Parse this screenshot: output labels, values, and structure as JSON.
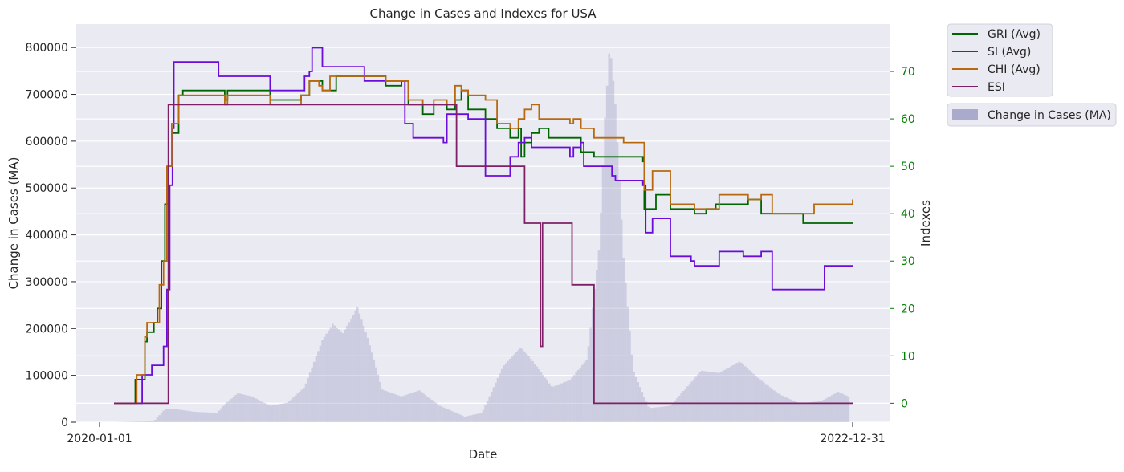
{
  "chart_data": {
    "type": "line",
    "title": "Change in Cases and Indexes for USA",
    "xlabel": "Date",
    "ylabel": "Change in Cases (MA)",
    "y2label": "Indexes",
    "x_ticks": [
      "2020-01-01",
      "2022-12-31"
    ],
    "x_range": [
      "2020-01-01",
      "2022-12-31"
    ],
    "ylim": [
      0,
      850000
    ],
    "y_ticks": [
      0,
      100000,
      200000,
      300000,
      400000,
      500000,
      600000,
      700000,
      800000
    ],
    "y2lim": [
      -4,
      80
    ],
    "y2_ticks": [
      0,
      10,
      20,
      30,
      40,
      50,
      60,
      70
    ],
    "grid": true,
    "legend_position": "outside-right",
    "colors": {
      "GRI": "#006400",
      "SI": "#6a0ddb",
      "CHI": "#b8690f",
      "ESI": "#7f2067",
      "cases": "#aaaacc",
      "plot_bg": "#eaeaf2",
      "right_tick": "#008000"
    },
    "cases": {
      "name": "Change in Cases (MA)",
      "points": [
        [
          "2020-01-22",
          0
        ],
        [
          "2020-03-20",
          2000
        ],
        [
          "2020-04-05",
          28000
        ],
        [
          "2020-04-20",
          28000
        ],
        [
          "2020-05-20",
          22000
        ],
        [
          "2020-06-20",
          20000
        ],
        [
          "2020-07-01",
          38000
        ],
        [
          "2020-07-20",
          62000
        ],
        [
          "2020-08-10",
          55000
        ],
        [
          "2020-09-05",
          35000
        ],
        [
          "2020-10-01",
          42000
        ],
        [
          "2020-10-25",
          75000
        ],
        [
          "2020-11-20",
          175000
        ],
        [
          "2020-12-05",
          210000
        ],
        [
          "2020-12-20",
          190000
        ],
        [
          "2021-01-10",
          245000
        ],
        [
          "2021-01-25",
          180000
        ],
        [
          "2021-02-15",
          70000
        ],
        [
          "2021-03-15",
          55000
        ],
        [
          "2021-04-10",
          68000
        ],
        [
          "2021-05-10",
          35000
        ],
        [
          "2021-06-15",
          12000
        ],
        [
          "2021-07-10",
          20000
        ],
        [
          "2021-08-10",
          120000
        ],
        [
          "2021-09-05",
          160000
        ],
        [
          "2021-09-25",
          125000
        ],
        [
          "2021-10-20",
          75000
        ],
        [
          "2021-11-15",
          90000
        ],
        [
          "2021-12-10",
          135000
        ],
        [
          "2021-12-28",
          380000
        ],
        [
          "2022-01-05",
          650000
        ],
        [
          "2022-01-12",
          810000
        ],
        [
          "2022-01-20",
          680000
        ],
        [
          "2022-02-01",
          350000
        ],
        [
          "2022-02-15",
          110000
        ],
        [
          "2022-03-10",
          30000
        ],
        [
          "2022-04-10",
          35000
        ],
        [
          "2022-05-10",
          85000
        ],
        [
          "2022-05-25",
          110000
        ],
        [
          "2022-06-20",
          105000
        ],
        [
          "2022-07-20",
          130000
        ],
        [
          "2022-08-15",
          95000
        ],
        [
          "2022-09-15",
          60000
        ],
        [
          "2022-10-15",
          40000
        ],
        [
          "2022-11-15",
          45000
        ],
        [
          "2022-12-10",
          65000
        ],
        [
          "2022-12-25",
          55000
        ]
      ]
    },
    "series": [
      {
        "name": "GRI (Avg)",
        "points": [
          [
            "2020-01-22",
            0
          ],
          [
            "2020-02-20",
            0
          ],
          [
            "2020-02-22",
            5
          ],
          [
            "2020-03-05",
            5
          ],
          [
            "2020-03-07",
            13
          ],
          [
            "2020-03-10",
            15
          ],
          [
            "2020-03-20",
            17
          ],
          [
            "2020-03-25",
            20
          ],
          [
            "2020-03-31",
            30
          ],
          [
            "2020-04-05",
            42
          ],
          [
            "2020-04-10",
            50
          ],
          [
            "2020-04-15",
            57
          ],
          [
            "2020-04-25",
            65
          ],
          [
            "2020-05-01",
            66
          ],
          [
            "2020-06-25",
            66
          ],
          [
            "2020-07-01",
            64
          ],
          [
            "2020-07-05",
            66
          ],
          [
            "2020-09-01",
            66
          ],
          [
            "2020-09-05",
            64
          ],
          [
            "2020-10-15",
            64
          ],
          [
            "2020-10-20",
            65
          ],
          [
            "2020-11-01",
            68
          ],
          [
            "2020-11-15",
            68
          ],
          [
            "2020-11-20",
            66
          ],
          [
            "2020-12-10",
            69
          ],
          [
            "2021-02-01",
            69
          ],
          [
            "2021-02-20",
            67
          ],
          [
            "2021-03-15",
            68
          ],
          [
            "2021-03-25",
            63
          ],
          [
            "2021-04-15",
            61
          ],
          [
            "2021-05-01",
            63
          ],
          [
            "2021-05-20",
            62
          ],
          [
            "2021-06-01",
            64
          ],
          [
            "2021-06-10",
            66
          ],
          [
            "2021-06-20",
            62
          ],
          [
            "2021-07-15",
            60
          ],
          [
            "2021-08-01",
            58
          ],
          [
            "2021-08-20",
            56
          ],
          [
            "2021-09-01",
            58
          ],
          [
            "2021-09-05",
            52
          ],
          [
            "2021-09-10",
            55
          ],
          [
            "2021-09-20",
            57
          ],
          [
            "2021-10-01",
            58
          ],
          [
            "2021-10-15",
            56
          ],
          [
            "2021-11-15",
            56
          ],
          [
            "2021-12-01",
            53
          ],
          [
            "2021-12-10",
            53
          ],
          [
            "2021-12-20",
            52
          ],
          [
            "2022-02-01",
            52
          ],
          [
            "2022-03-01",
            51
          ],
          [
            "2022-03-03",
            41
          ],
          [
            "2022-03-15",
            41
          ],
          [
            "2022-03-20",
            44
          ],
          [
            "2022-04-01",
            44
          ],
          [
            "2022-04-10",
            41
          ],
          [
            "2022-05-15",
            40
          ],
          [
            "2022-06-01",
            41
          ],
          [
            "2022-06-15",
            42
          ],
          [
            "2022-07-15",
            42
          ],
          [
            "2022-08-01",
            43
          ],
          [
            "2022-08-20",
            40
          ],
          [
            "2022-10-20",
            38
          ],
          [
            "2022-11-01",
            38
          ],
          [
            "2022-12-31",
            38
          ]
        ]
      },
      {
        "name": "SI (Avg)",
        "points": [
          [
            "2020-01-22",
            0
          ],
          [
            "2020-03-01",
            0
          ],
          [
            "2020-03-03",
            6
          ],
          [
            "2020-03-15",
            6
          ],
          [
            "2020-03-17",
            8
          ],
          [
            "2020-04-01",
            8
          ],
          [
            "2020-04-03",
            12
          ],
          [
            "2020-04-08",
            24
          ],
          [
            "2020-04-12",
            46
          ],
          [
            "2020-04-16",
            58
          ],
          [
            "2020-04-18",
            72
          ],
          [
            "2020-06-20",
            72
          ],
          [
            "2020-06-22",
            69
          ],
          [
            "2020-09-01",
            69
          ],
          [
            "2020-09-05",
            66
          ],
          [
            "2020-10-20",
            66
          ],
          [
            "2020-10-25",
            69
          ],
          [
            "2020-11-01",
            70
          ],
          [
            "2020-11-05",
            75
          ],
          [
            "2020-11-15",
            75
          ],
          [
            "2020-11-20",
            71
          ],
          [
            "2021-01-15",
            71
          ],
          [
            "2021-01-20",
            68
          ],
          [
            "2021-03-01",
            68
          ],
          [
            "2021-03-20",
            59
          ],
          [
            "2021-04-01",
            56
          ],
          [
            "2021-05-15",
            55
          ],
          [
            "2021-05-20",
            61
          ],
          [
            "2021-06-15",
            61
          ],
          [
            "2021-06-20",
            60
          ],
          [
            "2021-07-10",
            60
          ],
          [
            "2021-07-15",
            48
          ],
          [
            "2021-08-15",
            48
          ],
          [
            "2021-08-20",
            52
          ],
          [
            "2021-09-01",
            55
          ],
          [
            "2021-09-10",
            56
          ],
          [
            "2021-09-20",
            54
          ],
          [
            "2021-10-15",
            54
          ],
          [
            "2021-11-15",
            52
          ],
          [
            "2021-11-20",
            54
          ],
          [
            "2021-12-01",
            55
          ],
          [
            "2021-12-05",
            50
          ],
          [
            "2022-01-15",
            48
          ],
          [
            "2022-01-20",
            47
          ],
          [
            "2022-03-01",
            46
          ],
          [
            "2022-03-05",
            36
          ],
          [
            "2022-03-15",
            39
          ],
          [
            "2022-04-01",
            39
          ],
          [
            "2022-04-10",
            31
          ],
          [
            "2022-05-10",
            30
          ],
          [
            "2022-05-15",
            29
          ],
          [
            "2022-06-15",
            29
          ],
          [
            "2022-06-20",
            32
          ],
          [
            "2022-07-20",
            32
          ],
          [
            "2022-07-25",
            31
          ],
          [
            "2022-08-15",
            31
          ],
          [
            "2022-08-20",
            32
          ],
          [
            "2022-09-01",
            32
          ],
          [
            "2022-09-05",
            24
          ],
          [
            "2022-11-15",
            24
          ],
          [
            "2022-11-20",
            29
          ],
          [
            "2022-12-31",
            29
          ]
        ]
      },
      {
        "name": "CHI (Avg)",
        "points": [
          [
            "2020-01-22",
            0
          ],
          [
            "2020-02-22",
            0
          ],
          [
            "2020-02-24",
            6
          ],
          [
            "2020-03-05",
            6
          ],
          [
            "2020-03-07",
            14
          ],
          [
            "2020-03-10",
            17
          ],
          [
            "2020-03-25",
            17
          ],
          [
            "2020-03-28",
            25
          ],
          [
            "2020-04-03",
            30
          ],
          [
            "2020-04-08",
            50
          ],
          [
            "2020-04-15",
            59
          ],
          [
            "2020-04-25",
            65
          ],
          [
            "2020-06-25",
            65
          ],
          [
            "2020-07-01",
            63
          ],
          [
            "2020-07-05",
            65
          ],
          [
            "2020-09-01",
            65
          ],
          [
            "2020-09-05",
            63
          ],
          [
            "2020-10-15",
            63
          ],
          [
            "2020-10-20",
            65
          ],
          [
            "2020-11-01",
            68
          ],
          [
            "2020-11-15",
            67
          ],
          [
            "2020-11-20",
            66
          ],
          [
            "2020-12-01",
            69
          ],
          [
            "2021-02-01",
            69
          ],
          [
            "2021-02-20",
            68
          ],
          [
            "2021-03-15",
            68
          ],
          [
            "2021-03-25",
            64
          ],
          [
            "2021-04-15",
            63
          ],
          [
            "2021-05-01",
            64
          ],
          [
            "2021-05-20",
            63
          ],
          [
            "2021-06-01",
            67
          ],
          [
            "2021-06-10",
            66
          ],
          [
            "2021-06-20",
            65
          ],
          [
            "2021-07-10",
            65
          ],
          [
            "2021-07-15",
            64
          ],
          [
            "2021-08-01",
            59
          ],
          [
            "2021-08-20",
            58
          ],
          [
            "2021-09-01",
            60
          ],
          [
            "2021-09-10",
            62
          ],
          [
            "2021-09-20",
            63
          ],
          [
            "2021-10-01",
            60
          ],
          [
            "2021-11-15",
            59
          ],
          [
            "2021-11-20",
            60
          ],
          [
            "2021-12-01",
            58
          ],
          [
            "2021-12-20",
            56
          ],
          [
            "2022-01-15",
            56
          ],
          [
            "2022-02-01",
            55
          ],
          [
            "2022-03-01",
            55
          ],
          [
            "2022-03-03",
            45
          ],
          [
            "2022-03-15",
            49
          ],
          [
            "2022-04-01",
            49
          ],
          [
            "2022-04-10",
            42
          ],
          [
            "2022-05-01",
            42
          ],
          [
            "2022-05-15",
            41
          ],
          [
            "2022-06-15",
            41
          ],
          [
            "2022-06-20",
            44
          ],
          [
            "2022-07-20",
            44
          ],
          [
            "2022-08-01",
            43
          ],
          [
            "2022-08-20",
            44
          ],
          [
            "2022-09-05",
            40
          ],
          [
            "2022-10-01",
            40
          ],
          [
            "2022-11-01",
            40
          ],
          [
            "2022-11-05",
            42
          ],
          [
            "2022-12-31",
            43
          ]
        ]
      },
      {
        "name": "ESI",
        "points": [
          [
            "2020-01-22",
            0
          ],
          [
            "2020-04-05",
            0
          ],
          [
            "2020-04-10",
            63
          ],
          [
            "2021-05-01",
            63
          ],
          [
            "2021-06-01",
            63
          ],
          [
            "2021-06-03",
            50
          ],
          [
            "2021-09-01",
            50
          ],
          [
            "2021-09-10",
            38
          ],
          [
            "2021-10-01",
            38
          ],
          [
            "2021-10-03",
            12
          ],
          [
            "2021-10-06",
            38
          ],
          [
            "2021-11-15",
            38
          ],
          [
            "2021-11-18",
            25
          ],
          [
            "2021-12-15",
            25
          ],
          [
            "2021-12-20",
            0
          ],
          [
            "2022-12-31",
            0
          ]
        ]
      }
    ]
  }
}
